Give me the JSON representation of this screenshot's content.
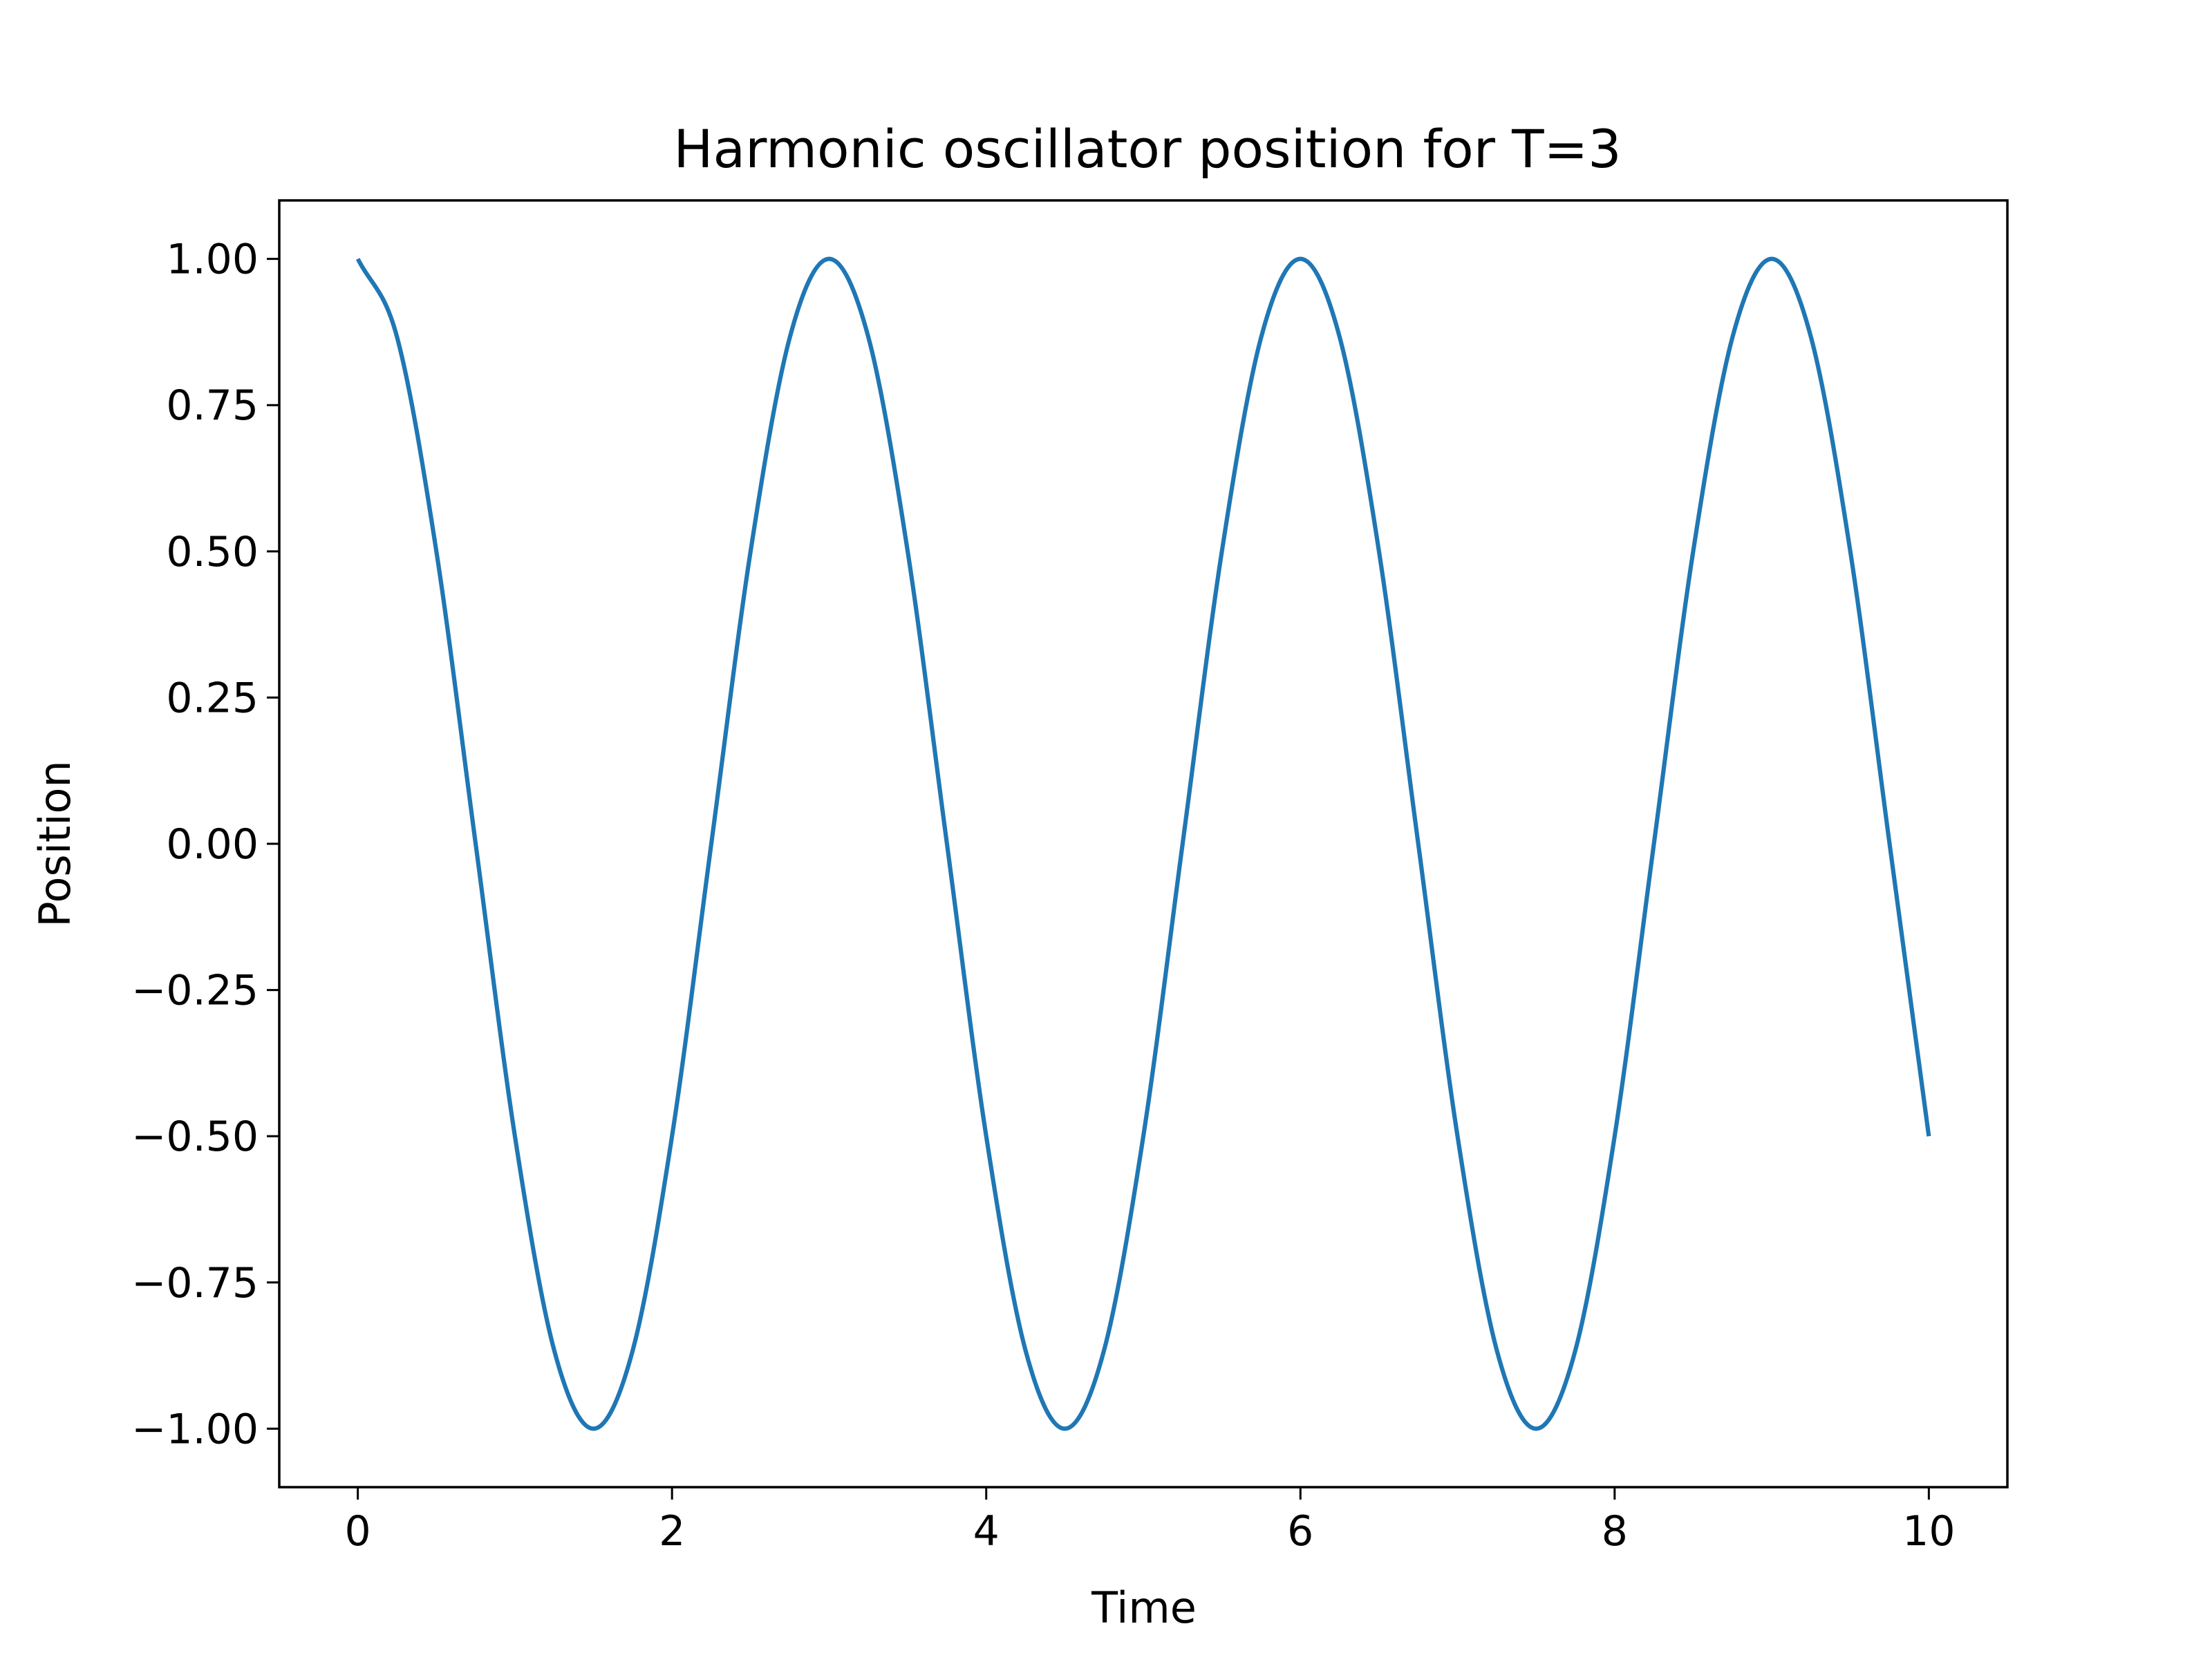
{
  "chart_data": {
    "type": "line",
    "title": "Harmonic oscillator position for T=3",
    "xlabel": "Time",
    "ylabel": "Position",
    "xlim": [
      -0.5,
      10.5
    ],
    "ylim": [
      -1.1,
      1.1
    ],
    "x_ticks": [
      0,
      2,
      4,
      6,
      8,
      10
    ],
    "x_tick_labels": [
      "0",
      "2",
      "4",
      "6",
      "8",
      "10"
    ],
    "y_ticks": [
      1.0,
      0.75,
      0.5,
      0.25,
      0.0,
      -0.25,
      -0.5,
      -0.75,
      -1.0
    ],
    "y_tick_labels": [
      "1.00",
      "0.75",
      "0.50",
      "0.25",
      "0.00",
      "−0.25",
      "−0.50",
      "−0.75",
      "−1.00"
    ],
    "grid": false,
    "series": [
      {
        "color": "#1f77b4",
        "x": [
          0,
          0.25,
          0.5,
          0.75,
          1,
          1.25,
          1.5,
          1.75,
          2,
          2.25,
          2.5,
          2.75,
          3,
          3.25,
          3.5,
          3.75,
          4,
          4.25,
          4.5,
          4.75,
          5,
          5.25,
          5.5,
          5.75,
          6,
          6.25,
          6.5,
          6.75,
          7,
          7.25,
          7.5,
          7.75,
          8,
          8.25,
          8.5,
          8.75,
          9,
          9.25,
          9.5,
          9.75,
          10
        ],
        "y": [
          1.0,
          0.866,
          0.5,
          0.0,
          -0.5,
          -0.866,
          -1.0,
          -0.866,
          -0.5,
          0.0,
          0.5,
          0.866,
          1.0,
          0.866,
          0.5,
          0.0,
          -0.5,
          -0.866,
          -1.0,
          -0.866,
          -0.5,
          0.0,
          0.5,
          0.866,
          1.0,
          0.866,
          0.5,
          0.0,
          -0.5,
          -0.866,
          -1.0,
          -0.866,
          -0.5,
          0.0,
          0.5,
          0.866,
          1.0,
          0.866,
          0.5,
          0.0,
          -0.5
        ]
      }
    ]
  }
}
